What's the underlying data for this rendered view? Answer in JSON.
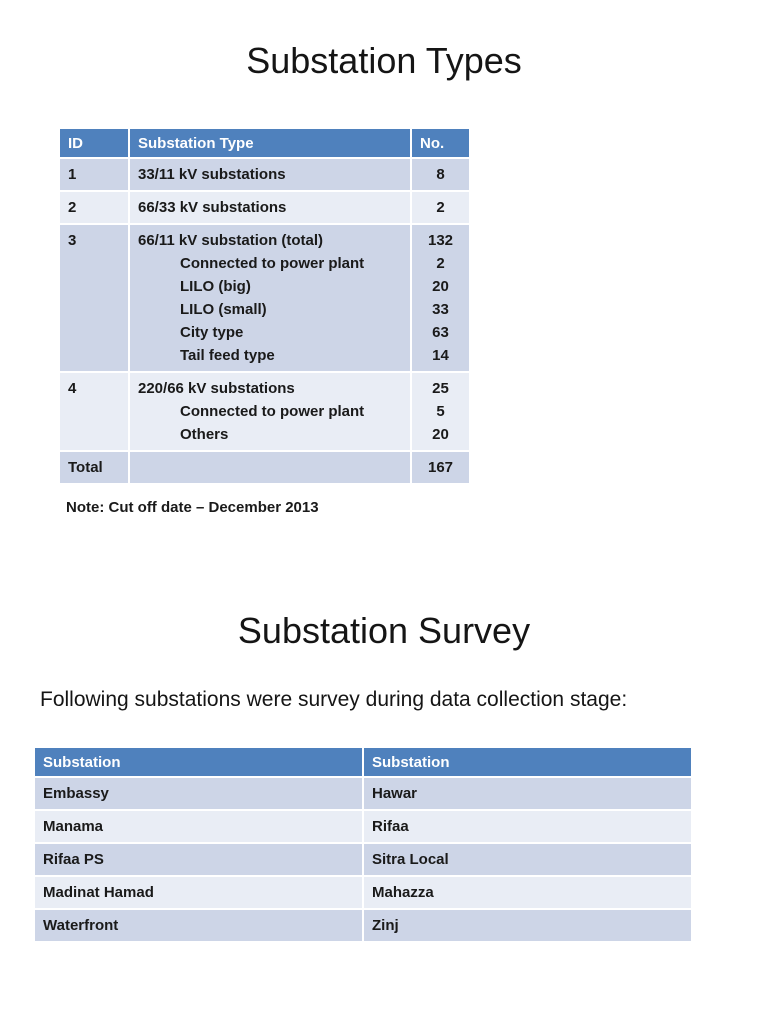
{
  "sections": {
    "types": {
      "title": "Substation Types",
      "note": "Note: Cut off date – December 2013",
      "table": {
        "headers": [
          "ID",
          "Substation Type",
          "No."
        ],
        "rows": [
          {
            "id": "1",
            "lines": [
              {
                "t": "33/11 kV substations",
                "n": "8"
              }
            ]
          },
          {
            "id": "2",
            "lines": [
              {
                "t": "66/33 kV substations",
                "n": "2"
              }
            ]
          },
          {
            "id": "3",
            "lines": [
              {
                "t": "66/11 kV substation (total)",
                "n": "132"
              },
              {
                "t": "Connected to power plant",
                "n": "2"
              },
              {
                "t": "LILO (big)",
                "n": "20"
              },
              {
                "t": "LILO (small)",
                "n": "33"
              },
              {
                "t": "City type",
                "n": "63"
              },
              {
                "t": "Tail feed type",
                "n": "14"
              }
            ]
          },
          {
            "id": "4",
            "lines": [
              {
                "t": "220/66 kV substations",
                "n": "25"
              },
              {
                "t": "Connected to power plant",
                "n": "5"
              },
              {
                "t": "Others",
                "n": "20"
              }
            ]
          }
        ],
        "total": {
          "label": "Total",
          "value": "167"
        }
      }
    },
    "survey": {
      "title": "Substation Survey",
      "intro": "Following substations were survey during data collection stage:",
      "table": {
        "headers": [
          "Substation",
          "Substation"
        ],
        "rows": [
          [
            "Embassy",
            "Hawar"
          ],
          [
            "Manama",
            "Rifaa"
          ],
          [
            "Rifaa PS",
            "Sitra Local"
          ],
          [
            "Madinat Hamad",
            "Mahazza"
          ],
          [
            "Waterfront",
            "Zinj"
          ]
        ]
      }
    }
  },
  "colors": {
    "table_header_bg": "#4F81BD",
    "table_header_text": "#FFFFFF",
    "band_dark": "#CDD5E7",
    "band_light": "#E9EDF5",
    "page_bg": "#FFFFFF",
    "text": "#151515"
  }
}
